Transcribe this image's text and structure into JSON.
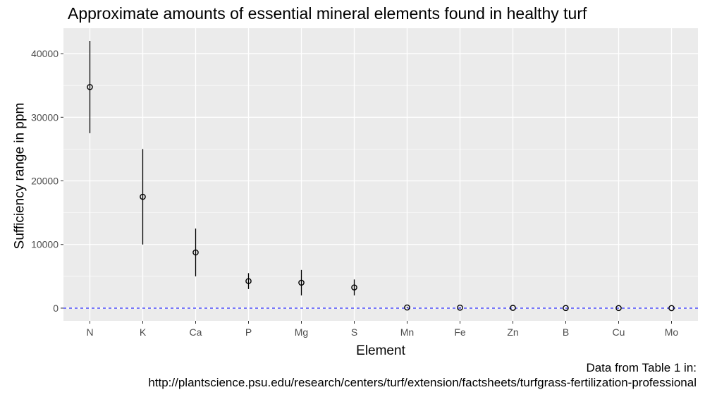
{
  "chart_data": {
    "type": "scatter",
    "title": "Approximate amounts of essential mineral elements found in healthy turf",
    "xlabel": "Element",
    "ylabel": "Sufficiency range in ppm",
    "categories": [
      "N",
      "K",
      "Ca",
      "P",
      "Mg",
      "S",
      "Mn",
      "Fe",
      "Zn",
      "B",
      "Cu",
      "Mo"
    ],
    "points": [
      {
        "element": "N",
        "value": 34750,
        "low": 27500,
        "high": 42000
      },
      {
        "element": "K",
        "value": 17500,
        "low": 10000,
        "high": 25000
      },
      {
        "element": "Ca",
        "value": 8750,
        "low": 5000,
        "high": 12500
      },
      {
        "element": "P",
        "value": 4250,
        "low": 3000,
        "high": 5500
      },
      {
        "element": "Mg",
        "value": 4000,
        "low": 2000,
        "high": 6000
      },
      {
        "element": "S",
        "value": 3250,
        "low": 2000,
        "high": 4500
      },
      {
        "element": "Mn",
        "value": 100,
        "low": 20,
        "high": 200
      },
      {
        "element": "Fe",
        "value": 75,
        "low": 35,
        "high": 150
      },
      {
        "element": "Zn",
        "value": 40,
        "low": 20,
        "high": 60
      },
      {
        "element": "B",
        "value": 20,
        "low": 10,
        "high": 30
      },
      {
        "element": "Cu",
        "value": 10,
        "low": 5,
        "high": 20
      },
      {
        "element": "Mo",
        "value": 1,
        "low": 0.5,
        "high": 2
      }
    ],
    "yticks": [
      0,
      10000,
      20000,
      30000,
      40000
    ],
    "ytick_labels": [
      "0",
      "10000",
      "20000",
      "30000",
      "40000"
    ],
    "ylim": [
      -2000,
      44000
    ],
    "reference_line": {
      "y": 0,
      "style": "dashed",
      "color": "#0000ff"
    },
    "grid": true,
    "panel_background": "#ebebeb",
    "gridline_color": "#ffffff",
    "caption": [
      "Data from Table 1 in:",
      "http://plantscience.psu.edu/research/centers/turf/extension/factsheets/turfgrass-fertilization-professional"
    ]
  }
}
